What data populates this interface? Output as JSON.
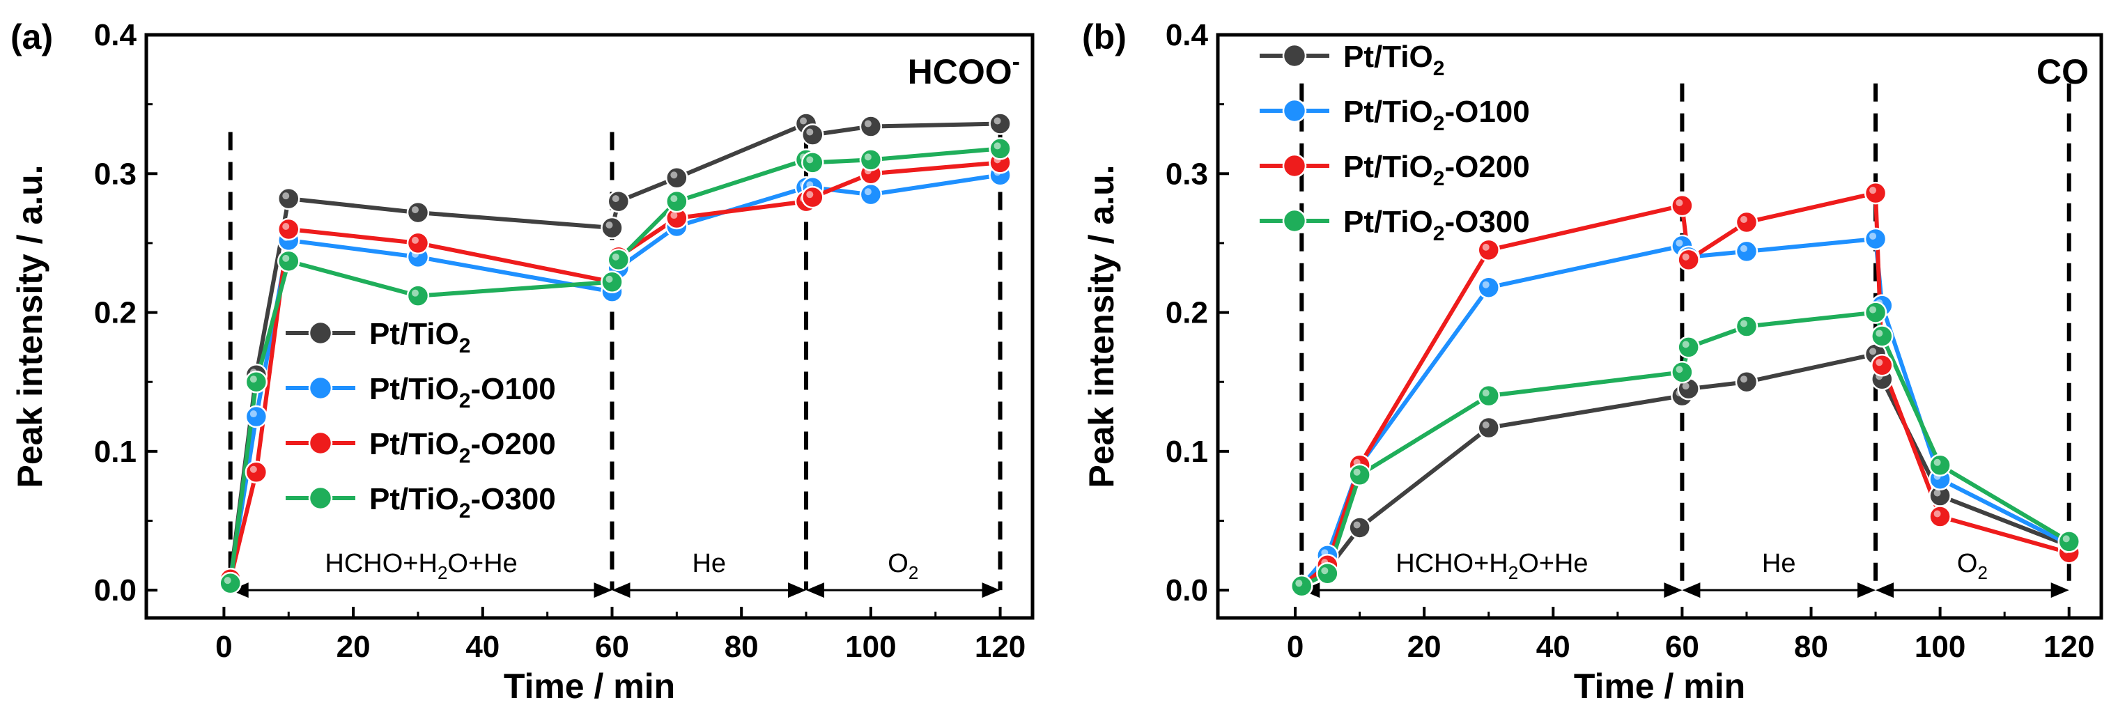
{
  "colors": {
    "Pt/TiO2": "#404040",
    "Pt/TiO2-O100": "#1e90ff",
    "Pt/TiO2-O200": "#ee1c1c",
    "Pt/TiO2-O300": "#1fae5a"
  },
  "chart_data": [
    {
      "type": "line",
      "panel_label": "(a)",
      "species": "HCOO",
      "species_sup": "-",
      "xlabel": "Time / min",
      "ylabel": "Peak intensity / a.u.",
      "xlim": [
        -12,
        125
      ],
      "ylim": [
        -0.02,
        0.4
      ],
      "xticks": [
        0,
        20,
        40,
        60,
        80,
        100,
        120
      ],
      "yticks": [
        0.0,
        0.1,
        0.2,
        0.3,
        0.4
      ],
      "ytick_labels": [
        "0.0",
        "0.1",
        "0.2",
        "0.3",
        "0.4"
      ],
      "legend_position": "center-left",
      "phase_lines": [
        1,
        60,
        90,
        120
      ],
      "phases": [
        {
          "label": "HCHO+H",
          "sub": "2",
          "rest": "O+He",
          "from": 1,
          "to": 60
        },
        {
          "label": "He",
          "sub": "",
          "rest": "",
          "from": 60,
          "to": 90
        },
        {
          "label": "O",
          "sub": "2",
          "rest": "",
          "from": 90,
          "to": 120
        }
      ],
      "series": [
        {
          "name": "Pt/TiO2",
          "name_main": "Pt/TiO",
          "name_sub": "2",
          "name_rest": "",
          "x": [
            1,
            5,
            10,
            30,
            60,
            61,
            70,
            90,
            91,
            100,
            120
          ],
          "y": [
            0.008,
            0.155,
            0.282,
            0.272,
            0.261,
            0.28,
            0.297,
            0.336,
            0.328,
            0.334,
            0.336
          ]
        },
        {
          "name": "Pt/TiO2-O100",
          "name_main": "Pt/TiO",
          "name_sub": "2",
          "name_rest": "-O100",
          "x": [
            1,
            5,
            10,
            30,
            60,
            61,
            70,
            90,
            91,
            100,
            120
          ],
          "y": [
            0.008,
            0.125,
            0.252,
            0.24,
            0.215,
            0.232,
            0.262,
            0.29,
            0.29,
            0.285,
            0.299
          ]
        },
        {
          "name": "Pt/TiO2-O200",
          "name_main": "Pt/TiO",
          "name_sub": "2",
          "name_rest": "-O200",
          "x": [
            1,
            5,
            10,
            30,
            60,
            61,
            70,
            90,
            91,
            100,
            120
          ],
          "y": [
            0.008,
            0.085,
            0.26,
            0.25,
            0.222,
            0.24,
            0.268,
            0.28,
            0.283,
            0.3,
            0.308
          ]
        },
        {
          "name": "Pt/TiO2-O300",
          "name_main": "Pt/TiO",
          "name_sub": "2",
          "name_rest": "-O300",
          "x": [
            1,
            5,
            10,
            30,
            60,
            61,
            70,
            90,
            91,
            100,
            120
          ],
          "y": [
            0.005,
            0.15,
            0.237,
            0.212,
            0.222,
            0.238,
            0.28,
            0.31,
            0.308,
            0.31,
            0.318
          ]
        }
      ]
    },
    {
      "type": "line",
      "panel_label": "(b)",
      "species": "CO",
      "species_sup": "",
      "xlabel": "Time / min",
      "ylabel": "Peak intensity / a.u.",
      "xlim": [
        -12,
        125
      ],
      "ylim": [
        -0.02,
        0.4
      ],
      "xticks": [
        0,
        20,
        40,
        60,
        80,
        100,
        120
      ],
      "yticks": [
        0.0,
        0.1,
        0.2,
        0.3,
        0.4
      ],
      "ytick_labels": [
        "0.0",
        "0.1",
        "0.2",
        "0.3",
        "0.4"
      ],
      "legend_position": "top-left",
      "phase_lines": [
        1,
        60,
        90,
        120
      ],
      "phases": [
        {
          "label": "HCHO+H",
          "sub": "2",
          "rest": "O+He",
          "from": 1,
          "to": 60
        },
        {
          "label": "He",
          "sub": "",
          "rest": "",
          "from": 60,
          "to": 90
        },
        {
          "label": "O",
          "sub": "2",
          "rest": "",
          "from": 90,
          "to": 120
        }
      ],
      "series": [
        {
          "name": "Pt/TiO2",
          "name_main": "Pt/TiO",
          "name_sub": "2",
          "name_rest": "",
          "x": [
            1,
            5,
            10,
            30,
            60,
            61,
            70,
            90,
            91,
            100,
            120
          ],
          "y": [
            0.003,
            0.015,
            0.045,
            0.117,
            0.14,
            0.145,
            0.15,
            0.17,
            0.152,
            0.068,
            0.032
          ]
        },
        {
          "name": "Pt/TiO2-O100",
          "name_main": "Pt/TiO",
          "name_sub": "2",
          "name_rest": "-O100",
          "x": [
            1,
            5,
            10,
            30,
            60,
            61,
            70,
            90,
            91,
            100,
            120
          ],
          "y": [
            0.003,
            0.025,
            0.09,
            0.218,
            0.248,
            0.24,
            0.244,
            0.253,
            0.205,
            0.08,
            0.033
          ]
        },
        {
          "name": "Pt/TiO2-O200",
          "name_main": "Pt/TiO",
          "name_sub": "2",
          "name_rest": "-O200",
          "x": [
            1,
            5,
            10,
            30,
            60,
            61,
            70,
            90,
            91,
            100,
            120
          ],
          "y": [
            0.003,
            0.018,
            0.09,
            0.245,
            0.277,
            0.238,
            0.265,
            0.286,
            0.162,
            0.053,
            0.027
          ]
        },
        {
          "name": "Pt/TiO2-O300",
          "name_main": "Pt/TiO",
          "name_sub": "2",
          "name_rest": "-O300",
          "x": [
            1,
            5,
            10,
            30,
            60,
            61,
            70,
            90,
            91,
            100,
            120
          ],
          "y": [
            0.003,
            0.012,
            0.083,
            0.14,
            0.157,
            0.175,
            0.19,
            0.2,
            0.183,
            0.09,
            0.035
          ]
        }
      ]
    }
  ]
}
